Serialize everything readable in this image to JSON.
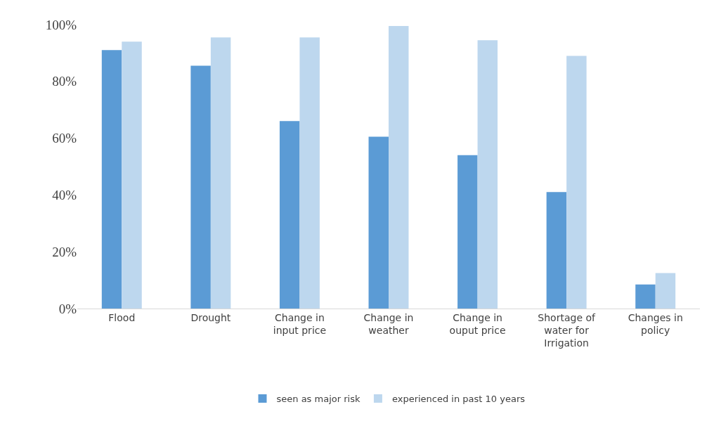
{
  "chart_data": {
    "type": "bar",
    "categories": [
      "Flood",
      "Drought",
      "Change in input price",
      "Change in weather",
      "Change in ouput price",
      "Shortage of water for Irrigation",
      "Changes in policy"
    ],
    "series": [
      {
        "name": "seen as major risk",
        "color": "#5b9bd5",
        "values": [
          91,
          85.5,
          66,
          60.5,
          54,
          41,
          8.5
        ]
      },
      {
        "name": "experienced in past 10 years",
        "color": "#bdd7ee",
        "values": [
          94,
          95.5,
          95.5,
          99.5,
          94.5,
          89,
          12.5
        ]
      }
    ],
    "ylim": [
      0,
      100
    ],
    "yticks": [
      {
        "value": 0,
        "label": "0%"
      },
      {
        "value": 20,
        "label": "20%"
      },
      {
        "value": 40,
        "label": "40%"
      },
      {
        "value": 60,
        "label": "60%"
      },
      {
        "value": 80,
        "label": "80%"
      },
      {
        "value": 100,
        "label": "100%"
      }
    ],
    "grid": false,
    "legend": "bottom"
  }
}
